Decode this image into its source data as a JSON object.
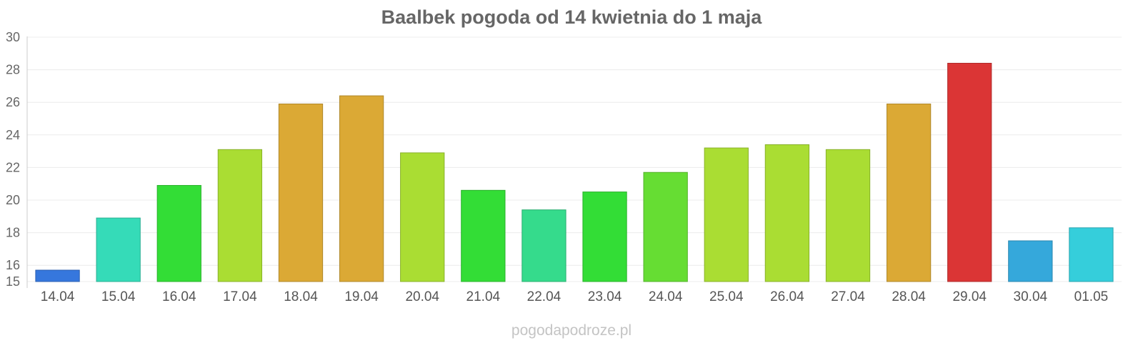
{
  "chart_data": {
    "type": "bar",
    "title": "Baalbek pogoda od 14 kwietnia do 1 maja",
    "xlabel": "",
    "ylabel": "",
    "ylim": [
      15,
      30
    ],
    "yticks": [
      15,
      16,
      18,
      20,
      22,
      24,
      26,
      28,
      30
    ],
    "grid": true,
    "legend": "none",
    "categories": [
      "14.04",
      "15.04",
      "16.04",
      "17.04",
      "18.04",
      "19.04",
      "20.04",
      "21.04",
      "22.04",
      "23.04",
      "24.04",
      "25.04",
      "26.04",
      "27.04",
      "28.04",
      "29.04",
      "30.04",
      "01.05"
    ],
    "values": [
      15.7,
      18.9,
      20.9,
      23.1,
      25.9,
      26.4,
      22.9,
      20.6,
      19.4,
      20.5,
      21.7,
      23.2,
      23.4,
      23.1,
      25.9,
      28.4,
      17.5,
      18.3
    ],
    "colors": [
      "#3677DD",
      "#35DBB8",
      "#33DD36",
      "#AADD33",
      "#DBA935",
      "#DBA935",
      "#AADD33",
      "#33DD36",
      "#35DB8C",
      "#33DD36",
      "#66DD33",
      "#AADD33",
      "#AADD33",
      "#AADD33",
      "#DBA935",
      "#DB3535",
      "#35A8DB",
      "#35CEDB"
    ],
    "source": "pogodapodroze.pl"
  }
}
